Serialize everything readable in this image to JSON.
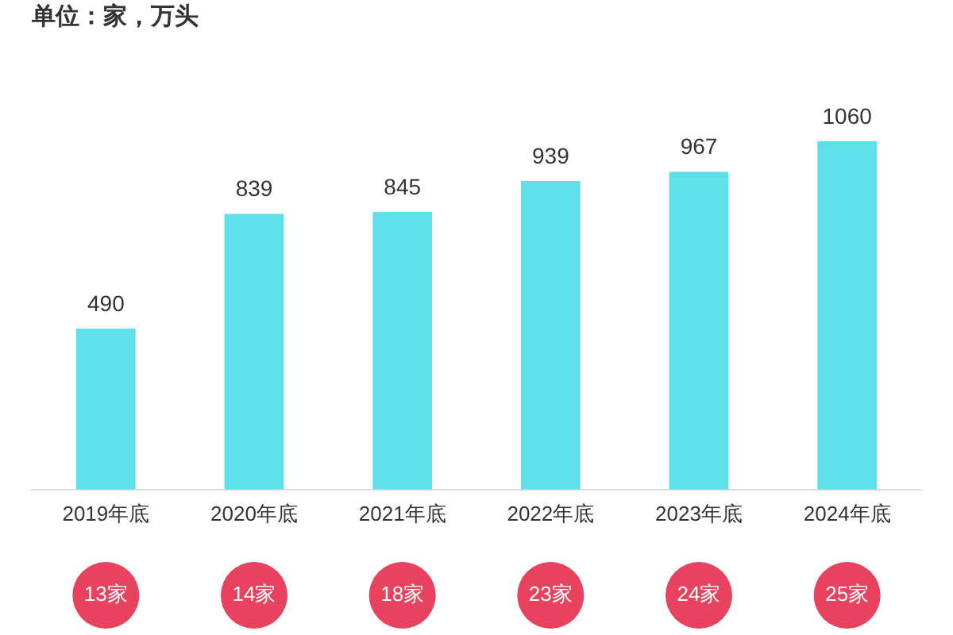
{
  "chart_data": {
    "type": "bar",
    "title": "单位：家，万头",
    "categories": [
      "2019年底",
      "2020年底",
      "2021年底",
      "2022年底",
      "2023年底",
      "2024年底"
    ],
    "values": [
      490,
      839,
      845,
      939,
      967,
      1060
    ],
    "color": "#5ee0ea",
    "data_labels": true,
    "grid": false,
    "legend": false,
    "tick_labels": "x",
    "annotations": [
      "13家",
      "14家",
      "18家",
      "23家",
      "24家",
      "25家"
    ]
  }
}
